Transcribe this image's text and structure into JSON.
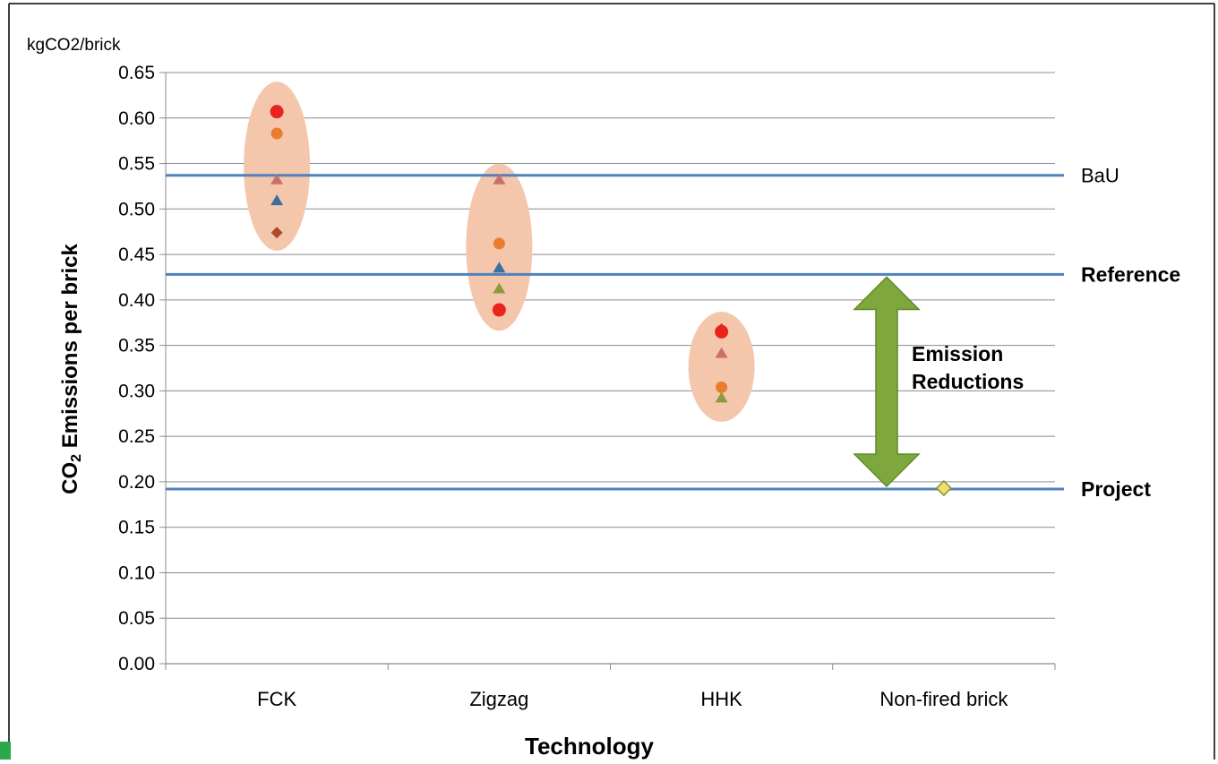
{
  "chart_data": {
    "type": "scatter",
    "y_unit_label": "kgCO2/brick",
    "ylabel_main": "CO",
    "ylabel_sub": "2",
    "ylabel_rest": " Emissions per brick",
    "xlabel": "Technology",
    "categories": [
      "FCK",
      "Zigzag",
      "HHK",
      "Non-fired brick"
    ],
    "ylim": [
      0,
      0.65
    ],
    "yticks": [
      "0.00",
      "0.05",
      "0.10",
      "0.15",
      "0.20",
      "0.25",
      "0.30",
      "0.35",
      "0.40",
      "0.45",
      "0.50",
      "0.55",
      "0.60",
      "0.65"
    ],
    "grid": true,
    "points": [
      {
        "category": "FCK",
        "value": 0.607,
        "marker": "circle",
        "color": "#e8241c"
      },
      {
        "category": "FCK",
        "value": 0.583,
        "marker": "circle",
        "color": "#e97d2c"
      },
      {
        "category": "FCK",
        "value": 0.532,
        "marker": "triangle",
        "color": "#c9706a"
      },
      {
        "category": "FCK",
        "value": 0.509,
        "marker": "triangle",
        "color": "#3a6fa0"
      },
      {
        "category": "FCK",
        "value": 0.474,
        "marker": "diamond",
        "color": "#b04a2e"
      },
      {
        "category": "Zigzag",
        "value": 0.532,
        "marker": "triangle",
        "color": "#c9706a"
      },
      {
        "category": "Zigzag",
        "value": 0.462,
        "marker": "circle",
        "color": "#e97d2c"
      },
      {
        "category": "Zigzag",
        "value": 0.435,
        "marker": "triangle",
        "color": "#3a6fa0"
      },
      {
        "category": "Zigzag",
        "value": 0.412,
        "marker": "triangle",
        "color": "#8c9a3a"
      },
      {
        "category": "Zigzag",
        "value": 0.389,
        "marker": "circle",
        "color": "#e8241c"
      },
      {
        "category": "HHK",
        "value": 0.368,
        "marker": "diamond",
        "color": "#b04a2e"
      },
      {
        "category": "HHK",
        "value": 0.365,
        "marker": "circle",
        "color": "#e8241c"
      },
      {
        "category": "HHK",
        "value": 0.341,
        "marker": "triangle",
        "color": "#c9706a"
      },
      {
        "category": "HHK",
        "value": 0.304,
        "marker": "circle",
        "color": "#e97d2c"
      },
      {
        "category": "HHK",
        "value": 0.292,
        "marker": "triangle",
        "color": "#8c9a3a"
      },
      {
        "category": "Non-fired brick",
        "value": 0.193,
        "marker": "diamond",
        "color": "#f0e06a"
      }
    ],
    "clusters": [
      {
        "category": "FCK",
        "min": 0.454,
        "max": 0.64
      },
      {
        "category": "Zigzag",
        "min": 0.366,
        "max": 0.55
      },
      {
        "category": "HHK",
        "min": 0.266,
        "max": 0.387
      }
    ],
    "reference_lines": [
      {
        "name": "BaU",
        "value": 0.537
      },
      {
        "name": "Reference",
        "value": 0.428
      },
      {
        "name": "Project",
        "value": 0.192
      }
    ],
    "arrow": {
      "from": 0.425,
      "to": 0.195,
      "label_line1": "Emission",
      "label_line2": "Reductions"
    },
    "colors": {
      "grid": "#8c8c8c",
      "axis": "#8c8c8c",
      "reference_line": "#4f81bd",
      "cluster_fill": "#f4c7ad",
      "arrow_fill": "#7ea83d",
      "arrow_stroke": "#5f8a2a",
      "diamond_stroke": "#8a8a3a",
      "text": "#000000"
    }
  }
}
